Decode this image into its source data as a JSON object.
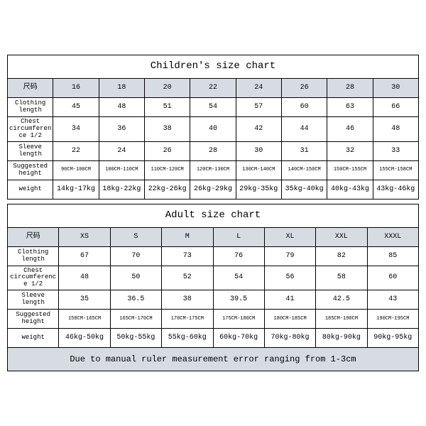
{
  "colors": {
    "header_bg": "#d6dce2",
    "border": "#000000",
    "background": "#ffffff"
  },
  "children": {
    "title": "Children's size chart",
    "row_header": "尺码",
    "sizes": [
      "16",
      "18",
      "20",
      "22",
      "24",
      "26",
      "28",
      "30"
    ],
    "rows": [
      {
        "label": "Clothing length",
        "values": [
          "45",
          "48",
          "51",
          "54",
          "57",
          "60",
          "63",
          "66"
        ]
      },
      {
        "label": "Chest circumference 1/2",
        "values": [
          "34",
          "36",
          "38",
          "40",
          "42",
          "44",
          "46",
          "48"
        ]
      },
      {
        "label": "Sleeve length",
        "values": [
          "22",
          "24",
          "26",
          "28",
          "30",
          "31",
          "32",
          "33"
        ]
      },
      {
        "label": "Suggested height",
        "values": [
          "90CM-100CM",
          "100CM-110CM",
          "110CM-120CM",
          "120CM-130CM",
          "130CM-140CM",
          "140CM-150CM",
          "150CM-155CM",
          "155CM-158CM"
        ],
        "small": true
      },
      {
        "label": "weight",
        "values": [
          "14kg-17kg",
          "18kg-22kg",
          "22kg-26kg",
          "26kg-29kg",
          "29kg-35kg",
          "35kg-40kg",
          "40kg-43kg",
          "43kg-46kg"
        ]
      }
    ]
  },
  "adult": {
    "title": "Adult size chart",
    "row_header": "尺码",
    "sizes": [
      "XS",
      "S",
      "M",
      "L",
      "XL",
      "XXL",
      "XXXL"
    ],
    "rows": [
      {
        "label": "Clothing length",
        "values": [
          "67",
          "70",
          "73",
          "76",
          "79",
          "82",
          "85"
        ]
      },
      {
        "label": "Chest circumference 1/2",
        "values": [
          "48",
          "50",
          "52",
          "54",
          "56",
          "58",
          "60"
        ]
      },
      {
        "label": "Sleeve length",
        "values": [
          "35",
          "36.5",
          "38",
          "39.5",
          "41",
          "42.5",
          "43"
        ]
      },
      {
        "label": "Suggested height",
        "values": [
          "158CM-165CM",
          "165CM-170CM",
          "170CM-175CM",
          "175CM-180CM",
          "180CM-185CM",
          "185CM-190CM",
          "190CM-195CM"
        ],
        "small": true
      },
      {
        "label": "weight",
        "values": [
          "46kg-50kg",
          "50kg-55kg",
          "55kg-60kg",
          "60kg-70kg",
          "70kg-80kg",
          "80kg-90kg",
          "90kg-95kg"
        ]
      }
    ],
    "note": "Due to manual ruler measurement error ranging from 1-3cm"
  }
}
